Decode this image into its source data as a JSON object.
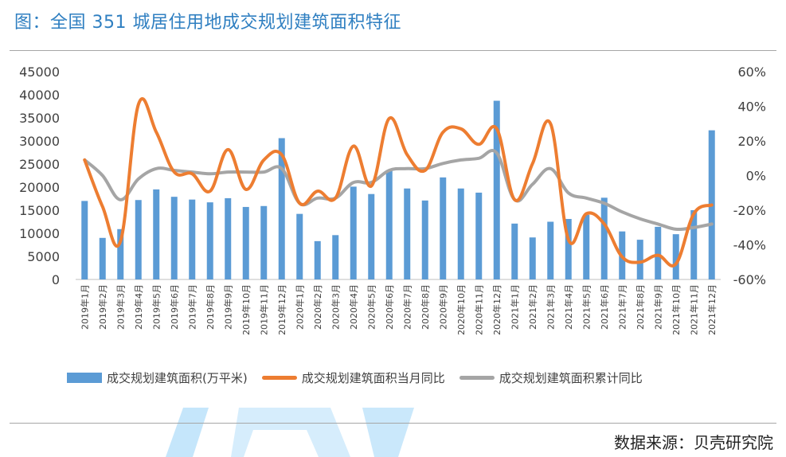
{
  "header": {
    "title": "图：全国 351 城居住用地成交规划建筑面积特征"
  },
  "footer": {
    "source": "数据来源：贝壳研究院"
  },
  "colors": {
    "bar": "#5b9bd5",
    "monthly": "#ed7d31",
    "cumulative": "#a5a5a5",
    "title": "#2f7fc1"
  },
  "chart_data": {
    "type": "bar+line",
    "title": "全国 351 城居住用地成交规划建筑面积特征",
    "categories": [
      "2019年1月",
      "2019年2月",
      "2019年3月",
      "2019年4月",
      "2019年5月",
      "2019年6月",
      "2019年7月",
      "2019年8月",
      "2019年9月",
      "2019年10月",
      "2019年11月",
      "2019年12月",
      "2020年1月",
      "2020年2月",
      "2020年3月",
      "2020年4月",
      "2020年5月",
      "2020年6月",
      "2020年7月",
      "2020年8月",
      "2020年9月",
      "2020年10月",
      "2020年11月",
      "2020年12月",
      "2021年1月",
      "2021年2月",
      "2021年3月",
      "2021年4月",
      "2021年5月",
      "2021年6月",
      "2021年7月",
      "2021年8月",
      "2021年9月",
      "2021年10月",
      "2021年11月",
      "2021年12月"
    ],
    "left_axis": {
      "min": 0,
      "max": 45000,
      "step": 5000,
      "ticks": [
        "0",
        "5000",
        "10000",
        "15000",
        "20000",
        "25000",
        "30000",
        "35000",
        "40000",
        "45000"
      ]
    },
    "right_axis": {
      "min": -60,
      "max": 60,
      "step": 20,
      "ticks": [
        "-60%",
        "-40%",
        "-20%",
        "0%",
        "20%",
        "40%",
        "60%"
      ]
    },
    "series": [
      {
        "name": "成交规划建筑面积(万平米)",
        "type": "bar",
        "axis": "left",
        "values": [
          17000,
          9000,
          10900,
          17200,
          19500,
          17900,
          17300,
          16700,
          17600,
          15700,
          15900,
          30600,
          14200,
          8300,
          9600,
          20100,
          18500,
          23700,
          19700,
          17100,
          22100,
          19700,
          18800,
          38700,
          12100,
          9100,
          12500,
          13100,
          14000,
          17700,
          10400,
          8600,
          11400,
          9800,
          15000,
          32300
        ]
      },
      {
        "name": "成交规划建筑面积当月同比",
        "type": "line",
        "axis": "right",
        "unit": "%",
        "values": [
          9,
          -18,
          -38,
          41,
          25,
          2,
          1,
          -9,
          15,
          -8,
          9,
          12,
          -16,
          -9,
          -13,
          17,
          -6,
          33,
          12,
          3,
          25,
          27,
          18,
          27,
          -14,
          7,
          30,
          -37,
          -22,
          -28,
          -47,
          -50,
          -46,
          -51,
          -22,
          -17
        ]
      },
      {
        "name": "成交规划建筑面积累计同比",
        "type": "line",
        "axis": "right",
        "unit": "%",
        "values": [
          9,
          0,
          -14,
          -2,
          4,
          3,
          2,
          1,
          2,
          2,
          2,
          4,
          -16,
          -13,
          -13,
          -4,
          -4,
          3,
          4,
          4,
          7,
          9,
          10,
          13,
          -14,
          -5,
          4,
          -10,
          -13,
          -16,
          -21,
          -25,
          -28,
          -31,
          -30,
          -28
        ]
      }
    ],
    "legend": [
      "成交规划建筑面积(万平米)",
      "成交规划建筑面积当月同比",
      "成交规划建筑面积累计同比"
    ]
  }
}
